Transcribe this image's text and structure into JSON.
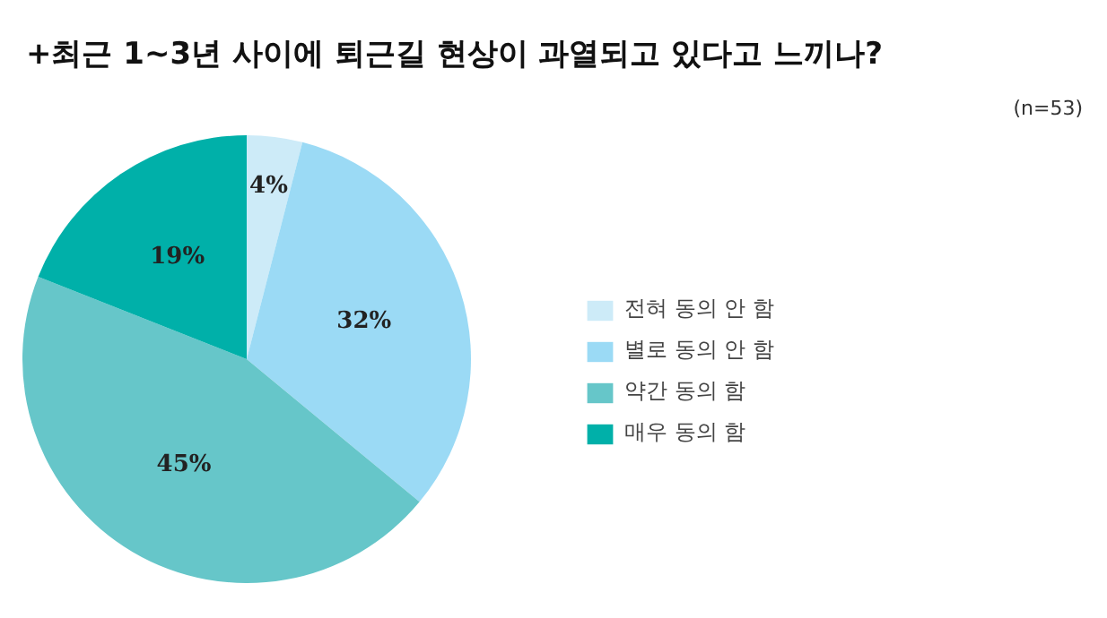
{
  "chart_data": {
    "type": "pie",
    "title": "+최근 1~3년 사이에 퇴근길 현상이 과열되고 있다고 느끼나?",
    "annotations": [
      "(n=53)"
    ],
    "categories": [
      "전혀 동의 안 함",
      "별로 동의 안 함",
      "약간 동의 함",
      "매우 동의 함"
    ],
    "values": [
      4,
      32,
      45,
      19
    ],
    "colors": [
      "#cdebf8",
      "#9bdaf5",
      "#66c6c9",
      "#00b0a9"
    ],
    "value_labels": [
      "4%",
      "32%",
      "45%",
      "19%"
    ],
    "legend": "right"
  }
}
